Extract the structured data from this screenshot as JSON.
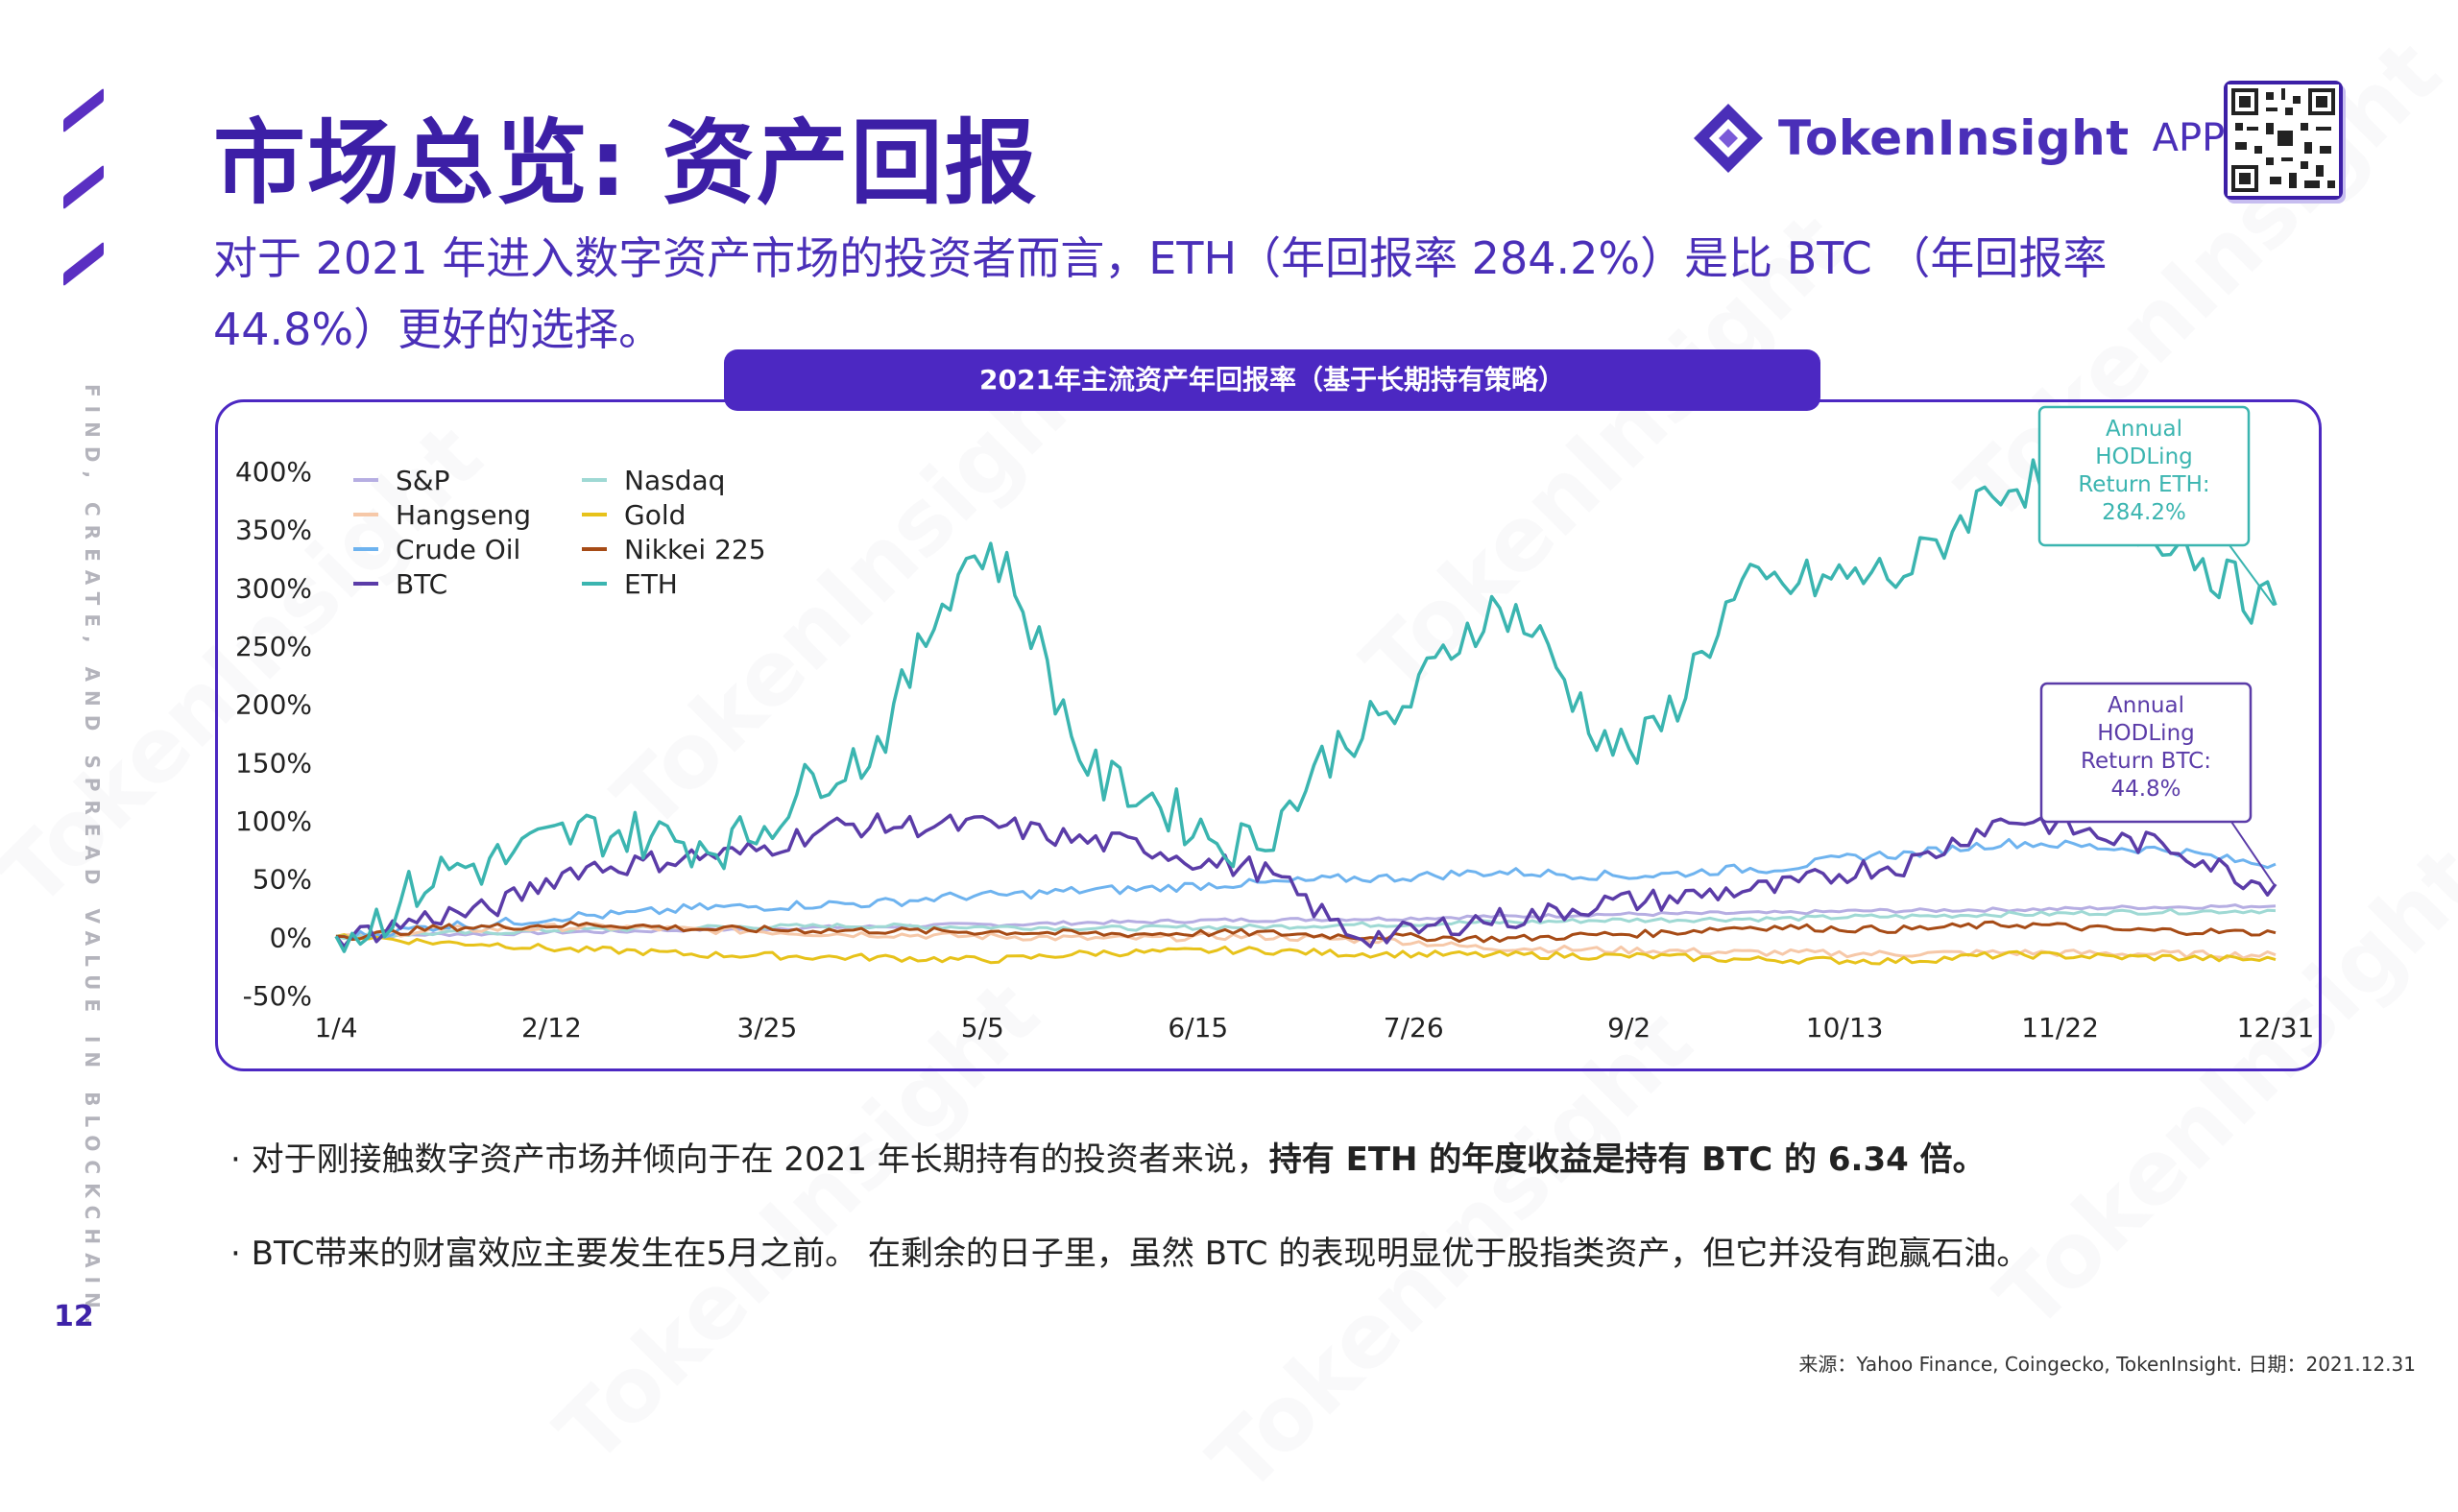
{
  "page": {
    "title": "市场总览: 资产回报",
    "subtitle": "对于 2021 年进入数字资产市场的投资者而言，ETH（年回报率 284.2%）是比 BTC （年回报率 44.8%）更好的选择。",
    "page_number": "12",
    "side_text": "FIND, CREATE, AND SPREAD VALUE IN BLOCKCHAIN.",
    "brand_name": "TokenInsight",
    "brand_suffix": "APP",
    "brand_color": "#4a2fb8",
    "watermark": "TokenInsight",
    "chart_tab": "2021年主流资产年回报率（基于长期持有策略）",
    "bullet1_prefix": "· 对于刚接触数字资产市场并倾向于在 2021 年长期持有的投资者来说，",
    "bullet1_bold": "持有 ETH 的年度收益是持有 BTC 的 6.34 倍。",
    "bullet2": "· BTC带来的财富效应主要发生在5月之前。 在剩余的日子里，虽然 BTC 的表现明显优于股指类资产，但它并没有跑赢石油。",
    "source": "来源：Yahoo Finance, Coingecko, TokenInsight. 日期：2021.12.31"
  },
  "chart_data": {
    "type": "line",
    "title": "2021年主流资产年回报率（基于长期持有策略）",
    "x_tick_labels": [
      "1/4",
      "2/12",
      "3/25",
      "5/5",
      "6/15",
      "7/26",
      "9/2",
      "10/13",
      "11/22",
      "12/31"
    ],
    "y_tick_labels": [
      "400%",
      "350%",
      "300%",
      "250%",
      "200%",
      "150%",
      "100%",
      "50%",
      "0%",
      "-50%"
    ],
    "ylim": [
      -50,
      400
    ],
    "grid": false,
    "legend_position": "top-left",
    "series": [
      {
        "name": "S&P",
        "color": "#b6aee2",
        "values": [
          0,
          2,
          4,
          6,
          8,
          10,
          12,
          14,
          15,
          17,
          19,
          20,
          22,
          23,
          25,
          26
        ]
      },
      {
        "name": "Nasdaq",
        "color": "#9fd9d4",
        "values": [
          0,
          3,
          6,
          8,
          9,
          8,
          7,
          8,
          10,
          12,
          14,
          15,
          17,
          19,
          21,
          22
        ]
      },
      {
        "name": "Hangseng",
        "color": "#f6c8a8",
        "values": [
          0,
          6,
          8,
          5,
          2,
          0,
          -2,
          0,
          -3,
          -10,
          -12,
          -14,
          -15,
          -14,
          -15,
          -16
        ]
      },
      {
        "name": "Gold",
        "color": "#e7c21a",
        "values": [
          0,
          -6,
          -12,
          -16,
          -18,
          -20,
          -14,
          -12,
          -15,
          -16,
          -17,
          -20,
          -21,
          -16,
          -18,
          -20
        ]
      },
      {
        "name": "Crude Oil",
        "color": "#6eb3ef",
        "values": [
          0,
          10,
          18,
          25,
          28,
          35,
          40,
          45,
          50,
          55,
          52,
          58,
          70,
          80,
          75,
          62
        ]
      },
      {
        "name": "Nikkei 225",
        "color": "#a64b16",
        "values": [
          0,
          8,
          10,
          6,
          5,
          4,
          2,
          3,
          0,
          -2,
          2,
          8,
          6,
          10,
          5,
          3
        ]
      },
      {
        "name": "BTC",
        "color": "#5b3ca8",
        "values": [
          0,
          20,
          60,
          70,
          95,
          95,
          80,
          60,
          0,
          15,
          30,
          40,
          60,
          100,
          80,
          44.8
        ]
      },
      {
        "name": "ETH",
        "color": "#3bb5b0",
        "values": [
          0,
          60,
          90,
          80,
          150,
          330,
          130,
          80,
          180,
          280,
          160,
          300,
          310,
          390,
          350,
          284.2
        ]
      }
    ],
    "annotations": [
      {
        "series": "ETH",
        "text": "Annual HODLing Return ETH: 284.2%",
        "color": "#3bb5b0"
      },
      {
        "series": "BTC",
        "text": "Annual HODLing Return BTC: 44.8%",
        "color": "#5b3ca8"
      }
    ]
  }
}
